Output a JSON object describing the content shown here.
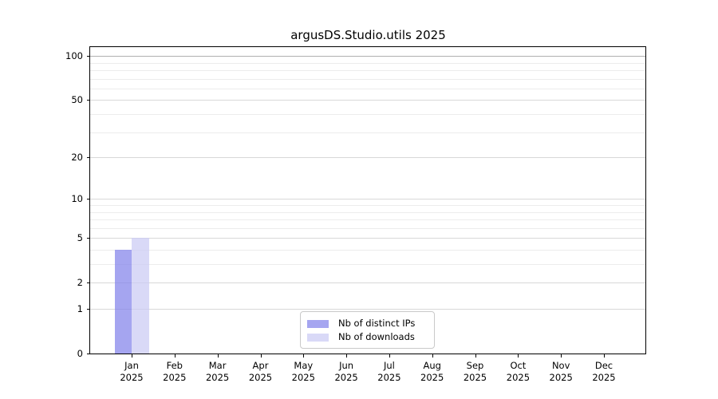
{
  "chart_data": {
    "type": "bar",
    "title": "argusDS.Studio.utils 2025",
    "categories": [
      "Jan",
      "Feb",
      "Mar",
      "Apr",
      "May",
      "Jun",
      "Jul",
      "Aug",
      "Sep",
      "Oct",
      "Nov",
      "Dec"
    ],
    "category_year": "2025",
    "series": [
      {
        "name": "Nb of distinct IPs",
        "color": "#8787eb",
        "alpha": 0.75,
        "values": [
          4,
          0,
          0,
          0,
          0,
          0,
          0,
          0,
          0,
          0,
          0,
          0
        ]
      },
      {
        "name": "Nb of downloads",
        "color": "#ccccf4",
        "alpha": 0.75,
        "values": [
          5,
          0,
          0,
          0,
          0,
          0,
          0,
          0,
          0,
          0,
          0,
          0
        ]
      }
    ],
    "yscale": "log1p",
    "ylim": [
      0,
      115
    ],
    "yticks": [
      0,
      1,
      2,
      5,
      10,
      20,
      50,
      100
    ],
    "minor_yticks": [
      3,
      4,
      6,
      7,
      8,
      9,
      30,
      40,
      60,
      70,
      80,
      90
    ],
    "highlight_gridline": 100,
    "grid": true,
    "legend_position": "lower center",
    "colors": {
      "grid_major": "#d8d8d8",
      "grid_minor": "#ececec",
      "grid_highlight": "#b0b0b0",
      "axis": "#000000",
      "text": "#000000",
      "background": "#ffffff"
    }
  }
}
